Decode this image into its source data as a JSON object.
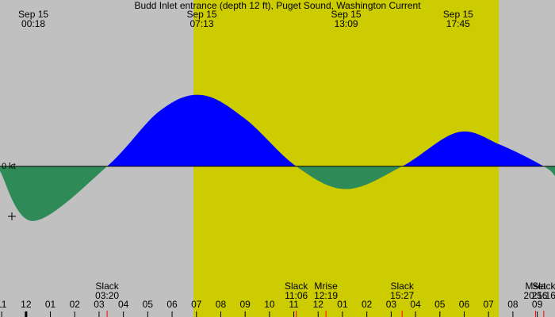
{
  "chart_data": {
    "type": "current",
    "title": "Budd Inlet entrance (depth 12 ft), Puget Sound, Washington Current",
    "x": [
      -1.07,
      0.3,
      3.33,
      5.5,
      7.22,
      9.0,
      11.1,
      13.15,
      15.45,
      17.75,
      19.5,
      21.27,
      21.73
    ],
    "series": [
      {
        "color": "#0000ff",
        "negative_color": "#2e8b57",
        "values": [
          -0.1,
          -1.15,
          0,
          1.17,
          1.5,
          1.0,
          0,
          -0.48,
          0,
          0.72,
          0.45,
          0,
          -0.2
        ]
      }
    ],
    "xlim": [
      -1.07,
      21.73
    ],
    "ylim": [
      -3.17,
      3.5
    ],
    "yticks": [
      {
        "value": 0,
        "label": "0 kt"
      }
    ],
    "xticks": [
      {
        "value": -1,
        "label": "11"
      },
      {
        "value": 0,
        "label": "12"
      },
      {
        "value": 1,
        "label": "01"
      },
      {
        "value": 2,
        "label": "02"
      },
      {
        "value": 3,
        "label": "03"
      },
      {
        "value": 4,
        "label": "04"
      },
      {
        "value": 5,
        "label": "05"
      },
      {
        "value": 6,
        "label": "06"
      },
      {
        "value": 7,
        "label": "07"
      },
      {
        "value": 8,
        "label": "08"
      },
      {
        "value": 9,
        "label": "09"
      },
      {
        "value": 10,
        "label": "10"
      },
      {
        "value": 11,
        "label": "11"
      },
      {
        "value": 12,
        "label": "12"
      },
      {
        "value": 13,
        "label": "01"
      },
      {
        "value": 14,
        "label": "02"
      },
      {
        "value": 15,
        "label": "03"
      },
      {
        "value": 16,
        "label": "04"
      },
      {
        "value": 17,
        "label": "05"
      },
      {
        "value": 18,
        "label": "06"
      },
      {
        "value": 19,
        "label": "07"
      },
      {
        "value": 20,
        "label": "08"
      },
      {
        "value": 21,
        "label": "09"
      }
    ],
    "daylight": [
      6.88,
      19.42
    ],
    "background_color": "#c0c0c0",
    "daylight_color": "#cccc00",
    "extremes": [
      {
        "x": 0.3,
        "date": "Sep 15",
        "time": "00:18"
      },
      {
        "x": 7.22,
        "date": "Sep 15",
        "time": "07:13"
      },
      {
        "x": 13.15,
        "date": "Sep 15",
        "time": "13:09"
      },
      {
        "x": 17.75,
        "date": "Sep 15",
        "time": "17:45"
      }
    ],
    "events": [
      {
        "x": 3.33,
        "label": "Slack",
        "time": "03:20"
      },
      {
        "x": 11.1,
        "label": "Slack",
        "time": "11:06"
      },
      {
        "x": 12.32,
        "label": "Mrise",
        "time": "12:19"
      },
      {
        "x": 15.45,
        "label": "Slack",
        "time": "15:27"
      },
      {
        "x": 20.93,
        "label": "Mset",
        "time": "20:56"
      },
      {
        "x": 21.27,
        "label": "Slack",
        "time": "21:16"
      }
    ]
  }
}
